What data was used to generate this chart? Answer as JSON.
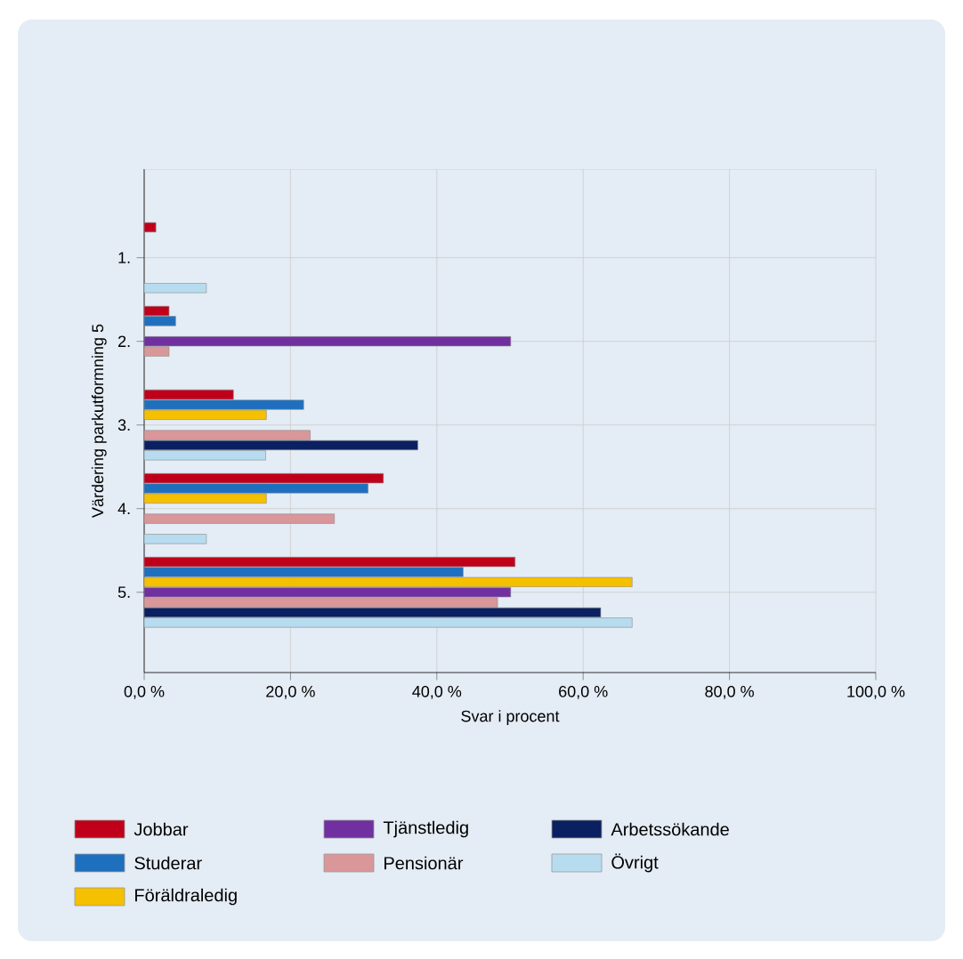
{
  "chart_data": {
    "type": "bar",
    "orientation": "horizontal",
    "xlabel": "Svar i procent",
    "ylabel": "Värdering parkutformning 5",
    "categories": [
      "1.",
      "2.",
      "3.",
      "4.",
      "5."
    ],
    "xlim": [
      0,
      100
    ],
    "xticks": [
      {
        "value": 0,
        "label": "0,0 %"
      },
      {
        "value": 20,
        "label": "20,0 %"
      },
      {
        "value": 40,
        "label": "40,0 %"
      },
      {
        "value": 60,
        "label": "60,0 %"
      },
      {
        "value": 80,
        "label": "80,0 %"
      },
      {
        "value": 100,
        "label": "100,0 %"
      }
    ],
    "grid": true,
    "legend": "bottom",
    "series": [
      {
        "name": "Jobbar",
        "color": "#c0001a",
        "values": [
          1.6,
          3.4,
          12.2,
          32.7,
          50.7
        ]
      },
      {
        "name": "Studerar",
        "color": "#1f6fbf",
        "values": [
          0,
          4.3,
          21.8,
          30.6,
          43.6
        ]
      },
      {
        "name": "Föräldraledig",
        "color": "#f5c000",
        "values": [
          0,
          0,
          16.7,
          16.7,
          66.7
        ]
      },
      {
        "name": "Tjänstledig",
        "color": "#7030a0",
        "values": [
          0,
          50.1,
          0,
          0,
          50.1
        ]
      },
      {
        "name": "Pensionär",
        "color": "#d9979a",
        "values": [
          0,
          3.4,
          22.7,
          26.0,
          48.3
        ]
      },
      {
        "name": "Arbetssökande",
        "color": "#0a2060",
        "values": [
          0,
          0,
          37.4,
          0,
          62.4
        ]
      },
      {
        "name": "Övrigt",
        "color": "#b8dcef",
        "values": [
          8.5,
          0,
          16.6,
          8.5,
          66.7
        ]
      }
    ]
  }
}
